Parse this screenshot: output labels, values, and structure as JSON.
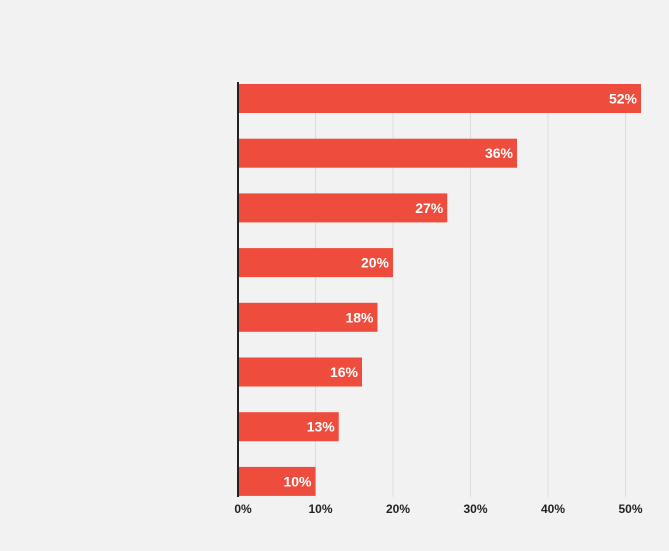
{
  "chart_data": {
    "type": "bar",
    "orientation": "horizontal",
    "title": "",
    "xlabel": "",
    "ylabel": "",
    "categories": [
      "",
      "",
      "",
      "",
      "",
      "",
      "",
      ""
    ],
    "values": [
      52,
      36,
      27,
      20,
      18,
      16,
      13,
      10
    ],
    "value_labels": [
      "52%",
      "36%",
      "27%",
      "20%",
      "18%",
      "16%",
      "13%",
      "10%"
    ],
    "xlim": [
      0,
      50
    ],
    "x_ticks": [
      0,
      10,
      20,
      30,
      40,
      50
    ],
    "x_tick_labels": [
      "0%",
      "10%",
      "20%",
      "30%",
      "40%",
      "50%"
    ],
    "grid": true,
    "legend": "none",
    "colors": {
      "bar": "#ee4c3c",
      "background": "#f2f2f2",
      "gridline": "#dddddd",
      "axis": "#222222",
      "value_label": "#ffffff"
    }
  }
}
